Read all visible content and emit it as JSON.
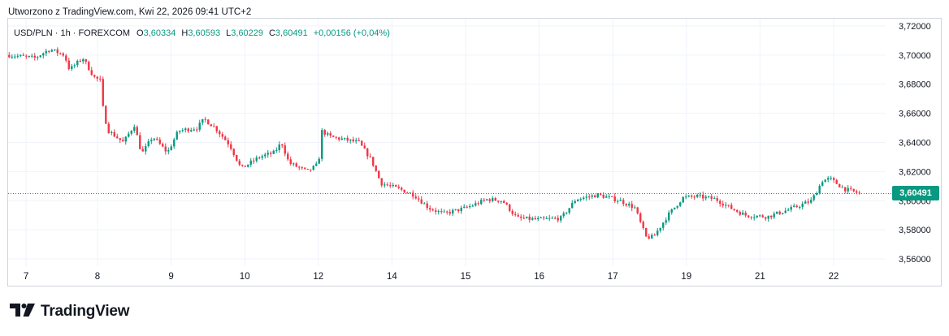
{
  "caption": "Utworzono z TradingView.com, Kwi 22, 2026 09:41 UTC+2",
  "legend": {
    "symbol": "USD/PLN · 1h · FOREXCOM",
    "o_label": "O",
    "o_value": "3,60334",
    "h_label": "H",
    "h_value": "3,60593",
    "l_label": "L",
    "l_value": "3,60229",
    "c_label": "C",
    "c_value": "3,60491",
    "change": "+0,00156 (+0,04%)"
  },
  "last_price": "3,60491",
  "brand": "TradingView",
  "colors": {
    "up": "#089981",
    "down": "#f23645",
    "grid": "#f0f3fa",
    "text": "#131722"
  },
  "chart_data": {
    "type": "candlestick",
    "ylim": [
      3.555,
      3.725
    ],
    "y_ticks": [
      {
        "value": 3.72,
        "label": "3,72000"
      },
      {
        "value": 3.7,
        "label": "3,70000"
      },
      {
        "value": 3.68,
        "label": "3,68000"
      },
      {
        "value": 3.66,
        "label": "3,66000"
      },
      {
        "value": 3.64,
        "label": "3,64000"
      },
      {
        "value": 3.62,
        "label": "3,62000"
      },
      {
        "value": 3.6,
        "label": "3,60000"
      },
      {
        "value": 3.58,
        "label": "3,58000"
      },
      {
        "value": 3.56,
        "label": "3,56000"
      }
    ],
    "x_ticks": [
      {
        "t": 0.03,
        "label": "7"
      },
      {
        "t": 1.0,
        "label": "8"
      },
      {
        "t": 2.0,
        "label": "9"
      },
      {
        "t": 3.0,
        "label": "10"
      },
      {
        "t": 4.0,
        "label": "12"
      },
      {
        "t": 5.0,
        "label": "14"
      },
      {
        "t": 6.0,
        "label": "15"
      },
      {
        "t": 7.0,
        "label": "16"
      },
      {
        "t": 8.0,
        "label": "17"
      },
      {
        "t": 9.0,
        "label": "19"
      },
      {
        "t": 10.0,
        "label": "21"
      },
      {
        "t": 11.0,
        "label": "22"
      }
    ],
    "t_range": [
      -0.2,
      11.9
    ],
    "last_value": 3.60491,
    "path": [
      [
        -0.2,
        3.7
      ],
      [
        0.15,
        3.698
      ],
      [
        0.35,
        3.704
      ],
      [
        0.55,
        3.7
      ],
      [
        0.62,
        3.69
      ],
      [
        0.8,
        3.698
      ],
      [
        0.95,
        3.685
      ],
      [
        1.05,
        3.682
      ],
      [
        1.08,
        3.66
      ],
      [
        1.15,
        3.648
      ],
      [
        1.35,
        3.64
      ],
      [
        1.5,
        3.652
      ],
      [
        1.6,
        3.632
      ],
      [
        1.75,
        3.644
      ],
      [
        1.95,
        3.633
      ],
      [
        2.1,
        3.648
      ],
      [
        2.35,
        3.65
      ],
      [
        2.45,
        3.656
      ],
      [
        2.6,
        3.65
      ],
      [
        2.8,
        3.638
      ],
      [
        2.95,
        3.622
      ],
      [
        3.2,
        3.63
      ],
      [
        3.4,
        3.633
      ],
      [
        3.5,
        3.64
      ],
      [
        3.6,
        3.626
      ],
      [
        3.85,
        3.62
      ],
      [
        4.0,
        3.625
      ],
      [
        4.05,
        3.648
      ],
      [
        4.15,
        3.644
      ],
      [
        4.35,
        3.642
      ],
      [
        4.55,
        3.64
      ],
      [
        4.72,
        3.628
      ],
      [
        4.85,
        3.612
      ],
      [
        5.1,
        3.608
      ],
      [
        5.3,
        3.604
      ],
      [
        5.5,
        3.595
      ],
      [
        5.7,
        3.591
      ],
      [
        6.0,
        3.595
      ],
      [
        6.3,
        3.601
      ],
      [
        6.5,
        3.6
      ],
      [
        6.7,
        3.588
      ],
      [
        7.0,
        3.587
      ],
      [
        7.3,
        3.588
      ],
      [
        7.5,
        3.601
      ],
      [
        7.8,
        3.604
      ],
      [
        8.1,
        3.6
      ],
      [
        8.3,
        3.595
      ],
      [
        8.45,
        3.575
      ],
      [
        8.55,
        3.575
      ],
      [
        8.75,
        3.59
      ],
      [
        8.95,
        3.602
      ],
      [
        9.15,
        3.603
      ],
      [
        9.4,
        3.601
      ],
      [
        9.6,
        3.595
      ],
      [
        9.8,
        3.59
      ],
      [
        10.1,
        3.589
      ],
      [
        10.4,
        3.594
      ],
      [
        10.7,
        3.6
      ],
      [
        10.85,
        3.614
      ],
      [
        10.95,
        3.615
      ],
      [
        11.15,
        3.608
      ],
      [
        11.35,
        3.605
      ]
    ]
  }
}
